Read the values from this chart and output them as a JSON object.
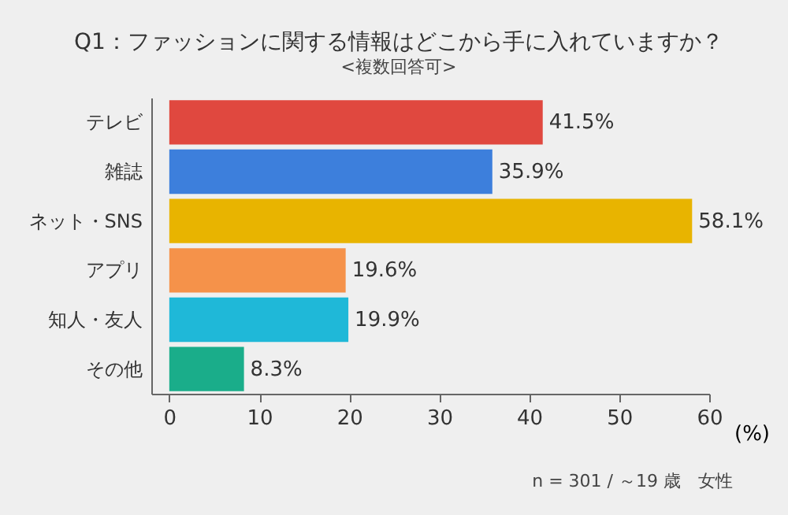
{
  "chart_data": {
    "type": "bar",
    "orientation": "horizontal",
    "title": "Q1：ファッションに関する情報はどこから手に入れていますか？",
    "subtitle": "<複数回答可>",
    "xlabel": "(%)",
    "categories": [
      "テレビ",
      "雑誌",
      "ネット・SNS",
      "アプリ",
      "知人・友人",
      "その他"
    ],
    "values": [
      41.5,
      35.9,
      58.1,
      19.6,
      19.9,
      8.3
    ],
    "colors": [
      "#e0483f",
      "#3d7fdc",
      "#e8b400",
      "#f5924a",
      "#1fb8d8",
      "#1aad8a"
    ],
    "value_labels": [
      "41.5%",
      "35.9%",
      "58.1%",
      "19.6%",
      "19.9%",
      "8.3%"
    ],
    "xlim": [
      -2,
      60
    ],
    "xticks": [
      0,
      10,
      20,
      30,
      40,
      50,
      60
    ],
    "annotations": [
      "n = 301 / ～19 歳　女性"
    ],
    "grid": false,
    "legend": false
  }
}
